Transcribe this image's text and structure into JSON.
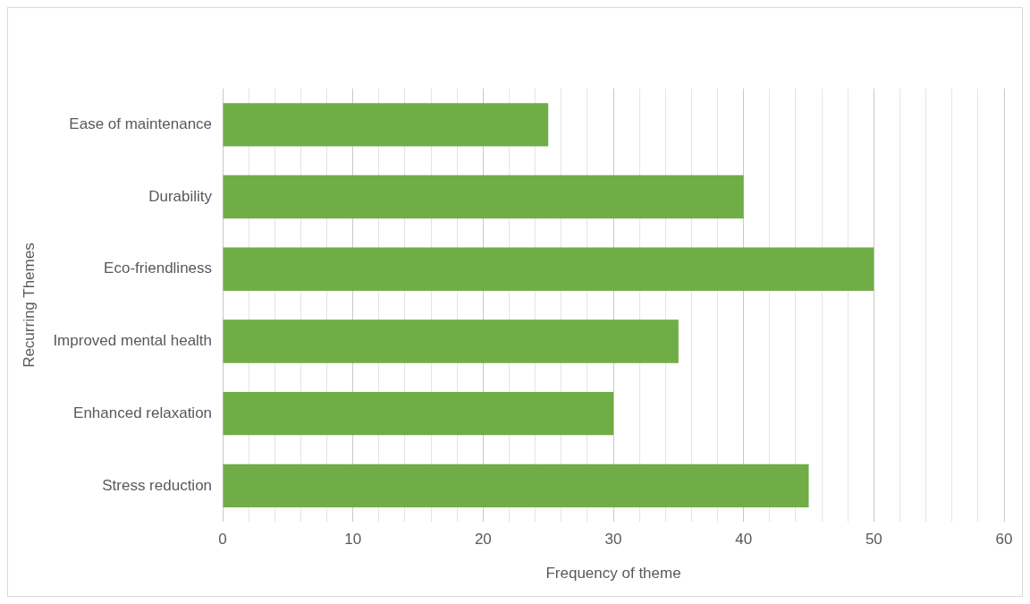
{
  "chart_data": {
    "type": "bar",
    "orientation": "horizontal",
    "xlabel": "Frequency of theme",
    "ylabel": "Recurring Themes",
    "categories": [
      "Ease of maintenance",
      "Durability",
      "Eco-friendliness",
      "Improved mental health",
      "Enhanced relaxation",
      "Stress reduction"
    ],
    "values": [
      25,
      40,
      50,
      35,
      30,
      45
    ],
    "color": "#70ad47",
    "xlim": [
      0,
      60
    ],
    "xticks": [
      0,
      {
        "value": 2,
        "label": null
      },
      {
        "value": 4,
        "label": null
      },
      {
        "value": 6,
        "label": null
      },
      {
        "value": 8,
        "label": null
      },
      10,
      {
        "value": 12,
        "label": null
      },
      {
        "value": 14,
        "label": null
      },
      {
        "value": 16,
        "label": null
      },
      {
        "value": 18,
        "label": null
      },
      20,
      {
        "value": 22,
        "label": null
      },
      {
        "value": 24,
        "label": null
      },
      {
        "value": 26,
        "label": null
      },
      {
        "value": 28,
        "label": null
      },
      30,
      {
        "value": 32,
        "label": null
      },
      {
        "value": 34,
        "label": null
      },
      {
        "value": 36,
        "label": null
      },
      {
        "value": 38,
        "label": null
      },
      40,
      {
        "value": 42,
        "label": null
      },
      {
        "value": 44,
        "label": null
      },
      {
        "value": 46,
        "label": null
      },
      {
        "value": 48,
        "label": null
      },
      50,
      {
        "value": 52,
        "label": null
      },
      {
        "value": 54,
        "label": null
      },
      {
        "value": 56,
        "label": null
      },
      {
        "value": 58,
        "label": null
      },
      60
    ],
    "grid": "x",
    "legend": false
  }
}
